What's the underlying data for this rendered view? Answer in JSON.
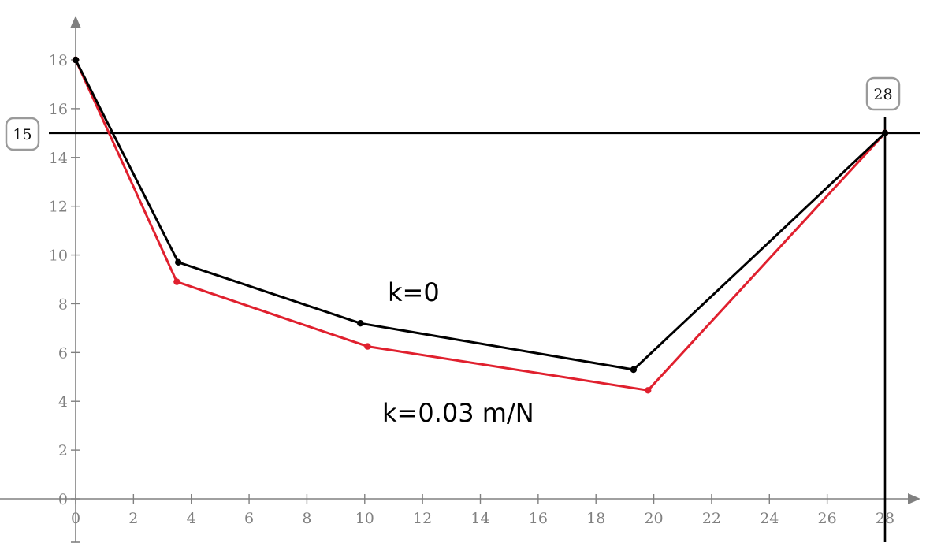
{
  "chart_data": {
    "type": "line",
    "xlim": [
      0,
      28
    ],
    "ylim": [
      0,
      18
    ],
    "x_ticks": [
      0,
      2,
      4,
      6,
      8,
      10,
      12,
      14,
      16,
      18,
      20,
      22,
      24,
      26,
      28
    ],
    "y_ticks": [
      0,
      2,
      4,
      6,
      8,
      10,
      12,
      14,
      16,
      18
    ],
    "grid": false,
    "series": [
      {
        "name": "k=0",
        "color": "#000000",
        "points": [
          [
            0,
            18
          ],
          [
            3.55,
            9.7
          ],
          [
            9.85,
            7.2
          ],
          [
            19.3,
            5.3
          ],
          [
            28,
            15
          ]
        ]
      },
      {
        "name": "k=0.03 m/N",
        "color": "#e0202e",
        "points": [
          [
            0,
            18
          ],
          [
            3.5,
            8.9
          ],
          [
            10.1,
            6.25
          ],
          [
            19.8,
            4.45
          ],
          [
            28,
            15
          ]
        ]
      }
    ],
    "reference_lines": {
      "horizontal": {
        "value": 15,
        "label": "15"
      },
      "vertical": {
        "value": 28,
        "label": "28"
      }
    }
  }
}
